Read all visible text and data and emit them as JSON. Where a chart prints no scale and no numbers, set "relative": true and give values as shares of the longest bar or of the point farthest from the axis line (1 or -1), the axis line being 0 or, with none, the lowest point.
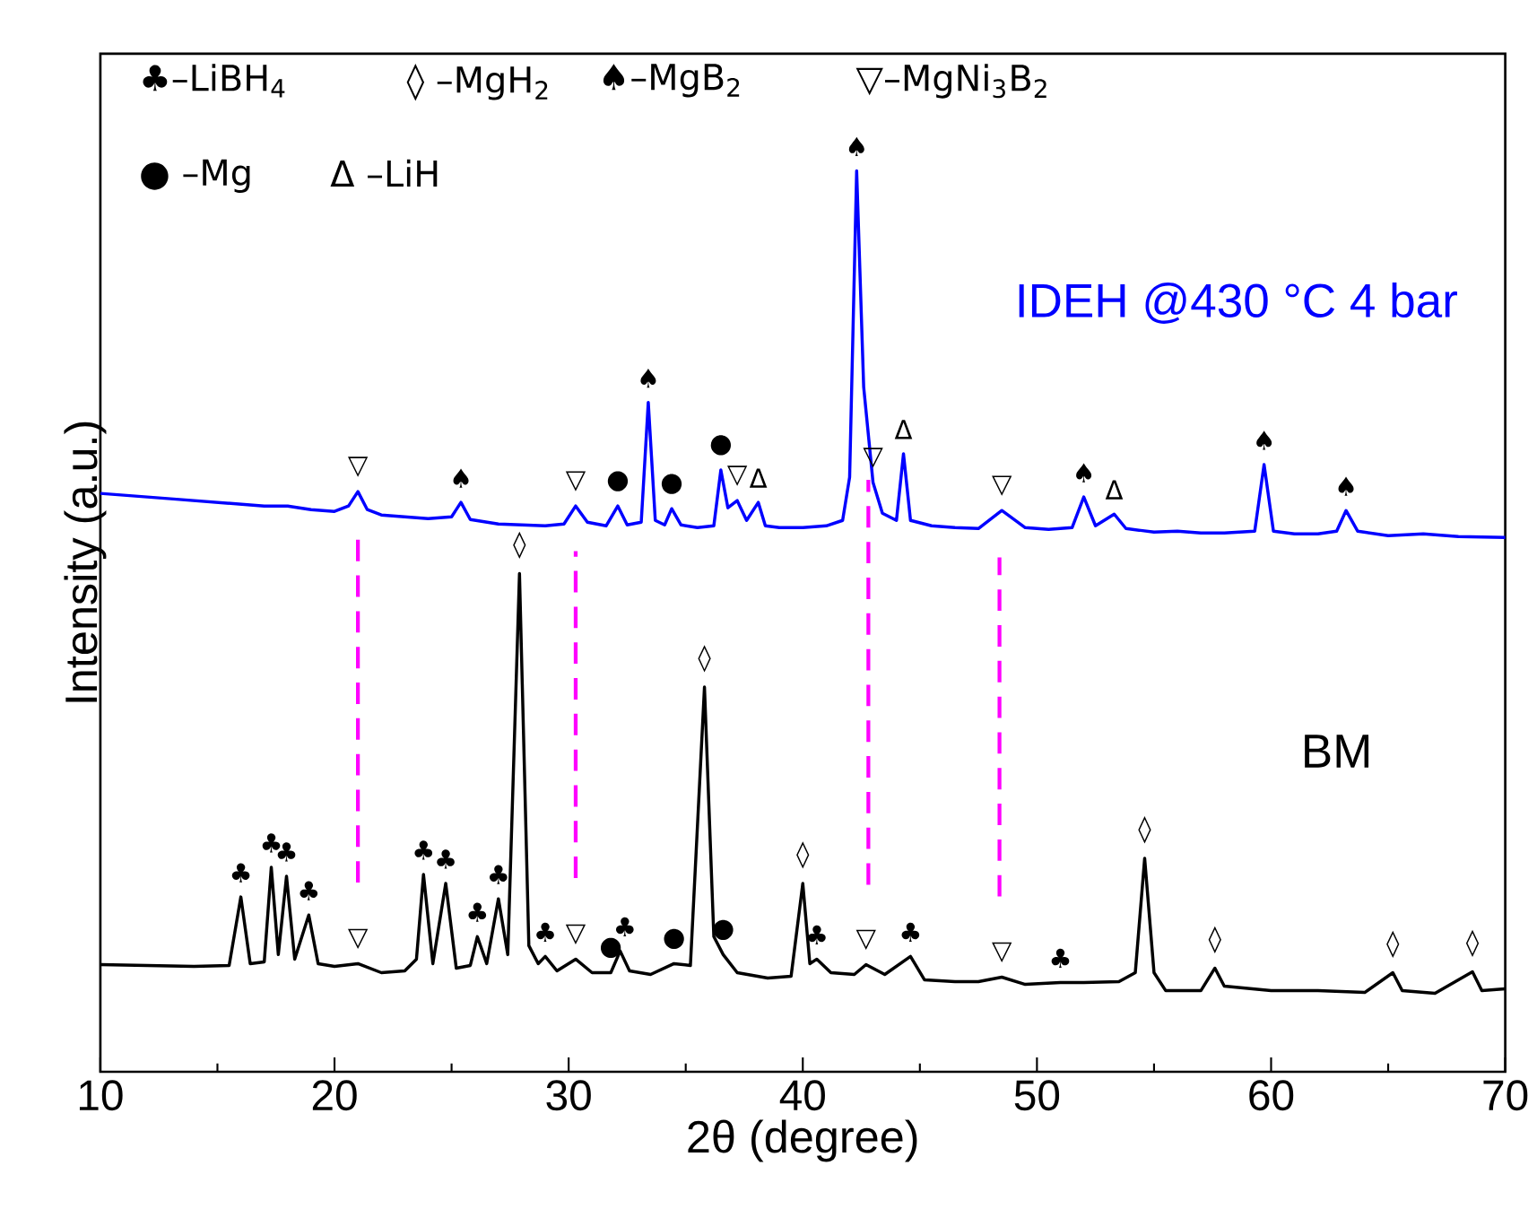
{
  "chart_data": {
    "type": "line",
    "relative": true,
    "xlabel": "2θ (degree)",
    "ylabel": "Intensity (a.u.)",
    "xlim": [
      10,
      70
    ],
    "xticks": [
      10,
      20,
      30,
      40,
      50,
      60,
      70
    ],
    "grid": false,
    "series": [
      {
        "name": "IDEH @430 °C 4 bar",
        "color": "#0000ff",
        "x": [
          10,
          11,
          12,
          13,
          14,
          15,
          16,
          17,
          18,
          19,
          20,
          20.6,
          21.0,
          21.4,
          22,
          23,
          24,
          25,
          25.4,
          25.8,
          27,
          28,
          29,
          29.8,
          30.3,
          30.8,
          31.6,
          32.1,
          32.5,
          33.1,
          33.4,
          33.7,
          34.1,
          34.4,
          34.8,
          35.5,
          36.2,
          36.5,
          36.8,
          37.2,
          37.6,
          38.1,
          38.4,
          39,
          40,
          41,
          41.7,
          42.0,
          42.3,
          42.6,
          43.0,
          43.4,
          44.0,
          44.3,
          44.6,
          45.5,
          46.5,
          47.5,
          48.5,
          49.5,
          50.5,
          51.5,
          52.0,
          52.5,
          53.3,
          53.8,
          55,
          56,
          57,
          58,
          59.3,
          59.7,
          60.1,
          61,
          62,
          62.8,
          63.2,
          63.7,
          65,
          66.5,
          68,
          70
        ],
        "values": [
          0.642,
          0.64,
          0.638,
          0.636,
          0.634,
          0.632,
          0.63,
          0.628,
          0.628,
          0.624,
          0.622,
          0.628,
          0.644,
          0.624,
          0.618,
          0.616,
          0.614,
          0.616,
          0.632,
          0.613,
          0.608,
          0.607,
          0.606,
          0.608,
          0.628,
          0.61,
          0.606,
          0.628,
          0.607,
          0.61,
          0.743,
          0.612,
          0.607,
          0.625,
          0.607,
          0.604,
          0.606,
          0.668,
          0.626,
          0.634,
          0.612,
          0.632,
          0.606,
          0.604,
          0.604,
          0.606,
          0.612,
          0.66,
          1.0,
          0.76,
          0.654,
          0.62,
          0.612,
          0.686,
          0.612,
          0.606,
          0.604,
          0.603,
          0.623,
          0.604,
          0.602,
          0.604,
          0.638,
          0.606,
          0.619,
          0.603,
          0.599,
          0.6,
          0.598,
          0.598,
          0.6,
          0.674,
          0.6,
          0.597,
          0.597,
          0.6,
          0.623,
          0.6,
          0.595,
          0.597,
          0.594,
          0.593
        ]
      },
      {
        "name": "BM",
        "color": "#000000",
        "x": [
          10,
          12,
          14,
          15.5,
          16.0,
          16.4,
          17.0,
          17.3,
          17.6,
          17.95,
          18.3,
          18.9,
          19.3,
          20,
          21.0,
          22,
          23,
          23.5,
          23.8,
          24.2,
          24.75,
          25.2,
          25.8,
          26.1,
          26.5,
          27.0,
          27.4,
          27.9,
          28.3,
          28.7,
          29.0,
          29.5,
          30.3,
          31,
          31.8,
          32.2,
          32.6,
          33.5,
          34.5,
          35.2,
          35.8,
          36.2,
          36.6,
          37.2,
          38.5,
          39.5,
          40.0,
          40.3,
          40.6,
          41.2,
          42.2,
          42.7,
          43.5,
          44.6,
          45.2,
          46.5,
          47.5,
          48.5,
          49.5,
          51.0,
          52,
          53.5,
          54.2,
          54.6,
          55.0,
          55.5,
          57,
          57.6,
          58,
          60,
          62,
          64,
          65.2,
          65.6,
          67,
          68.6,
          69,
          70
        ],
        "values": [
          0.119,
          0.118,
          0.117,
          0.118,
          0.194,
          0.12,
          0.122,
          0.227,
          0.13,
          0.217,
          0.125,
          0.174,
          0.12,
          0.117,
          0.12,
          0.11,
          0.112,
          0.125,
          0.219,
          0.12,
          0.209,
          0.115,
          0.118,
          0.15,
          0.12,
          0.192,
          0.13,
          0.553,
          0.14,
          0.12,
          0.128,
          0.112,
          0.125,
          0.11,
          0.11,
          0.134,
          0.112,
          0.108,
          0.12,
          0.118,
          0.427,
          0.15,
          0.13,
          0.11,
          0.104,
          0.106,
          0.209,
          0.12,
          0.125,
          0.11,
          0.108,
          0.119,
          0.108,
          0.128,
          0.102,
          0.1,
          0.1,
          0.105,
          0.097,
          0.099,
          0.099,
          0.1,
          0.11,
          0.237,
          0.11,
          0.09,
          0.09,
          0.115,
          0.095,
          0.09,
          0.09,
          0.088,
          0.11,
          0.09,
          0.087,
          0.111,
          0.09,
          0.092
        ]
      }
    ],
    "ref_lines": [
      {
        "axis": "x",
        "value": 21.0,
        "color": "#ff00ff",
        "line_style": "dashed"
      },
      {
        "axis": "x",
        "value": 30.3,
        "color": "#ff00ff",
        "line_style": "dashed"
      },
      {
        "axis": "x",
        "value": 42.8,
        "color": "#ff00ff",
        "line_style": "dashed"
      },
      {
        "axis": "x",
        "value": 48.4,
        "color": "#ff00ff",
        "line_style": "dashed"
      }
    ],
    "annotations": [
      "♣–LiBH$_{4}$",
      "◊ –MgH$_{2}$",
      "♠–MgB$_{2}$",
      "▽–MgNi$_{3}$B$_{2}$",
      "● –Mg",
      "Δ –LiH",
      {
        "text": "▽",
        "x": 21.0,
        "y": 0.644
      },
      {
        "text": "♠",
        "x": 25.4,
        "y": 0.632
      },
      {
        "text": "▽",
        "x": 30.3,
        "y": 0.628
      },
      {
        "text": "●",
        "x": 32.1,
        "y": 0.628
      },
      {
        "text": "♠",
        "x": 33.4,
        "y": 0.743
      },
      {
        "text": "●",
        "x": 34.4,
        "y": 0.625
      },
      {
        "text": "●",
        "x": 36.5,
        "y": 0.668
      },
      {
        "text": "▽",
        "x": 37.2,
        "y": 0.634
      },
      {
        "text": "Δ",
        "x": 38.1,
        "y": 0.632
      },
      {
        "text": "♠",
        "x": 42.3,
        "y": 1.0
      },
      {
        "text": "▽",
        "x": 43.0,
        "y": 0.654
      },
      {
        "text": "Δ",
        "x": 44.3,
        "y": 0.686
      },
      {
        "text": "▽",
        "x": 48.5,
        "y": 0.623
      },
      {
        "text": "♠",
        "x": 52.0,
        "y": 0.638
      },
      {
        "text": "Δ",
        "x": 53.3,
        "y": 0.619
      },
      {
        "text": "♠",
        "x": 59.7,
        "y": 0.674
      },
      {
        "text": "♠",
        "x": 63.2,
        "y": 0.623
      },
      {
        "text": "♣",
        "x": 16.0,
        "y": 0.194
      },
      {
        "text": "♣",
        "x": 17.3,
        "y": 0.227
      },
      {
        "text": "♣",
        "x": 17.95,
        "y": 0.217
      },
      {
        "text": "♣",
        "x": 18.9,
        "y": 0.174
      },
      {
        "text": "▽",
        "x": 21.0,
        "y": 0.12
      },
      {
        "text": "♣",
        "x": 23.8,
        "y": 0.219
      },
      {
        "text": "♣",
        "x": 24.75,
        "y": 0.209
      },
      {
        "text": "♣",
        "x": 26.1,
        "y": 0.15
      },
      {
        "text": "♣",
        "x": 27.0,
        "y": 0.192
      },
      {
        "text": "◊",
        "x": 27.9,
        "y": 0.553
      },
      {
        "text": "♣",
        "x": 29.0,
        "y": 0.128
      },
      {
        "text": "▽",
        "x": 30.3,
        "y": 0.125
      },
      {
        "text": "●",
        "x": 31.8,
        "y": 0.11
      },
      {
        "text": "♣",
        "x": 32.4,
        "y": 0.134
      },
      {
        "text": "●",
        "x": 34.5,
        "y": 0.12
      },
      {
        "text": "◊",
        "x": 35.8,
        "y": 0.427
      },
      {
        "text": "●",
        "x": 36.6,
        "y": 0.13
      },
      {
        "text": "◊",
        "x": 40.0,
        "y": 0.209
      },
      {
        "text": "♣",
        "x": 40.6,
        "y": 0.125
      },
      {
        "text": "▽",
        "x": 42.7,
        "y": 0.119
      },
      {
        "text": "♣",
        "x": 44.6,
        "y": 0.128
      },
      {
        "text": "▽",
        "x": 48.5,
        "y": 0.105
      },
      {
        "text": "♣",
        "x": 51.0,
        "y": 0.099
      },
      {
        "text": "◊",
        "x": 54.6,
        "y": 0.237
      },
      {
        "text": "◊",
        "x": 57.6,
        "y": 0.115
      },
      {
        "text": "◊",
        "x": 65.2,
        "y": 0.11
      },
      {
        "text": "◊",
        "x": 68.6,
        "y": 0.111
      }
    ]
  }
}
